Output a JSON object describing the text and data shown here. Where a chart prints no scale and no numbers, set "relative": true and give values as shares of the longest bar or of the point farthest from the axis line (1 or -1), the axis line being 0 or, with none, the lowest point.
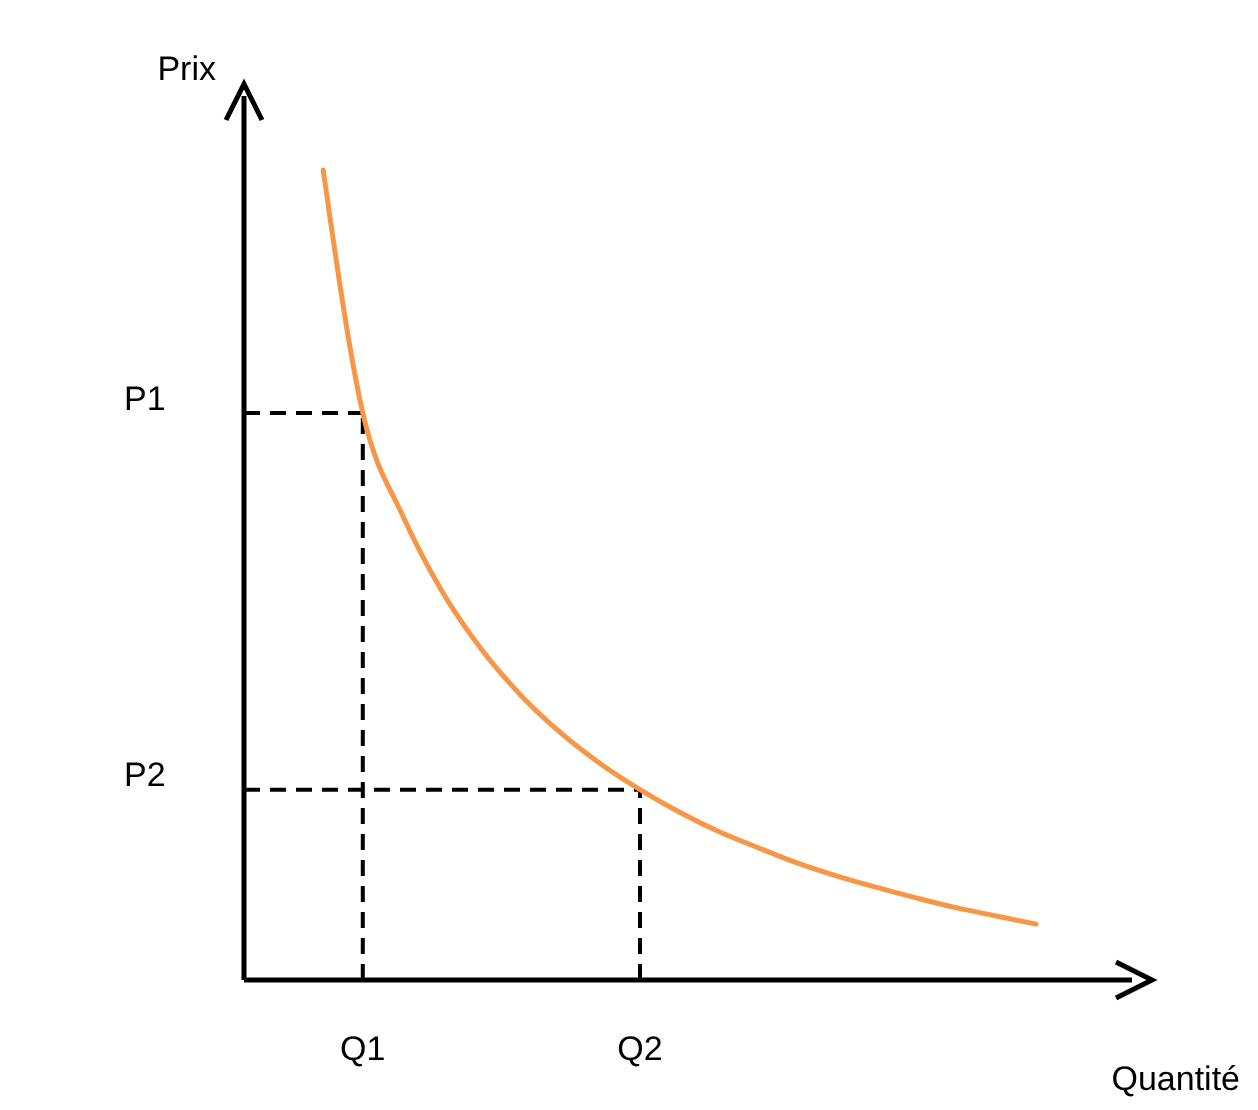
{
  "chart_data": {
    "type": "line",
    "xlabel": "Quantité",
    "ylabel": "Prix",
    "relative": true,
    "categories": [
      null,
      null,
      null,
      "Q1",
      null,
      null,
      null,
      null,
      null,
      null,
      "Q2",
      null,
      null,
      null,
      null,
      null,
      null,
      null,
      null,
      null,
      null
    ],
    "series": [
      {
        "color": "#f79646",
        "values": [
          null,
          null,
          1.0,
          0.7,
          0.574,
          0.48,
          0.408,
          0.351,
          0.305,
          0.267,
          0.235,
          0.207,
          0.183,
          0.163,
          0.144,
          0.128,
          0.114,
          0.101,
          0.089,
          0.079,
          0.069
        ]
      }
    ],
    "ref_lines": [
      {
        "axis": "y",
        "value": 0.7,
        "label": "P1",
        "color": "#000000",
        "line_style": "dashed"
      },
      {
        "axis": "y",
        "value": 0.235,
        "label": "P2",
        "color": "#000000",
        "line_style": "dashed"
      },
      {
        "axis": "x",
        "value": "Q1",
        "color": "#000000",
        "line_style": "dashed"
      },
      {
        "axis": "x",
        "value": "Q2",
        "color": "#000000",
        "line_style": "dashed"
      }
    ]
  }
}
